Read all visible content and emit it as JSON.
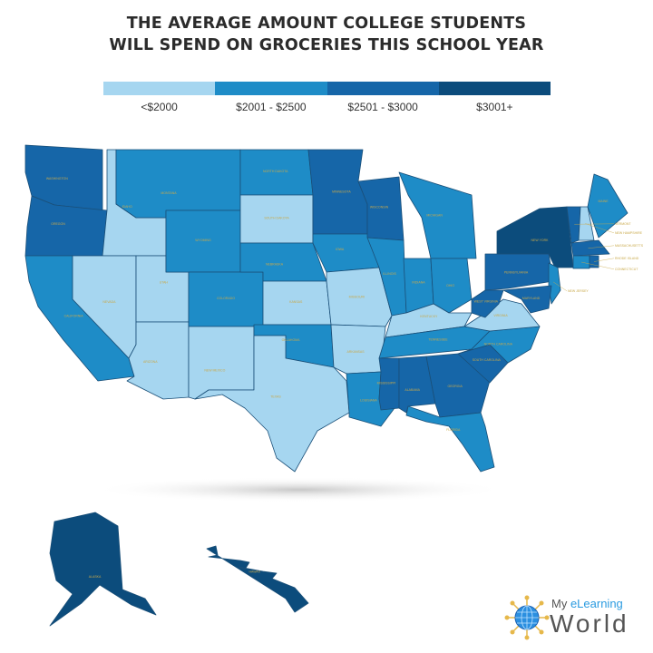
{
  "title_line1": "THE AVERAGE AMOUNT COLLEGE STUDENTS",
  "title_line2": "WILL SPEND ON GROCERIES THIS SCHOOL YEAR",
  "legend": [
    {
      "label": "<$2000",
      "color": "#a6d6f0"
    },
    {
      "label": "$2001 - $2500",
      "color": "#1e8cc7"
    },
    {
      "label": "$2501 - $3000",
      "color": "#1666a8"
    },
    {
      "label": "$3001+",
      "color": "#0c4c7c"
    }
  ],
  "label_color": "#c9a94a",
  "states": [
    {
      "name": "WASHINGTON",
      "bin": 2
    },
    {
      "name": "OREGON",
      "bin": 2
    },
    {
      "name": "CALIFORNIA",
      "bin": 1
    },
    {
      "name": "IDAHO",
      "bin": 0
    },
    {
      "name": "NEVADA",
      "bin": 0
    },
    {
      "name": "UTAH",
      "bin": 0
    },
    {
      "name": "ARIZONA",
      "bin": 0
    },
    {
      "name": "MONTANA",
      "bin": 1
    },
    {
      "name": "WYOMING",
      "bin": 1
    },
    {
      "name": "COLORADO",
      "bin": 1
    },
    {
      "name": "NEW MEXICO",
      "bin": 0
    },
    {
      "name": "NORTH DAKOTA",
      "bin": 1
    },
    {
      "name": "SOUTH DAKOTA",
      "bin": 0
    },
    {
      "name": "NEBRASKA",
      "bin": 1
    },
    {
      "name": "KANSAS",
      "bin": 0
    },
    {
      "name": "OKLAHOMA",
      "bin": 1
    },
    {
      "name": "TEXAS",
      "bin": 0
    },
    {
      "name": "MINNESOTA",
      "bin": 2
    },
    {
      "name": "IOWA",
      "bin": 1
    },
    {
      "name": "MISSOURI",
      "bin": 0
    },
    {
      "name": "ARKANSAS",
      "bin": 0
    },
    {
      "name": "LOUISIANA",
      "bin": 1
    },
    {
      "name": "WISCONSIN",
      "bin": 2
    },
    {
      "name": "ILLINOIS",
      "bin": 1
    },
    {
      "name": "MICHIGAN",
      "bin": 1
    },
    {
      "name": "INDIANA",
      "bin": 1
    },
    {
      "name": "OHIO",
      "bin": 1
    },
    {
      "name": "KENTUCKY",
      "bin": 0
    },
    {
      "name": "TENNESSEE",
      "bin": 1
    },
    {
      "name": "MISSISSIPPI",
      "bin": 2
    },
    {
      "name": "ALABAMA",
      "bin": 2
    },
    {
      "name": "GEORGIA",
      "bin": 2
    },
    {
      "name": "FLORIDA",
      "bin": 1
    },
    {
      "name": "SOUTH CAROLINA",
      "bin": 2
    },
    {
      "name": "NORTH CAROLINA",
      "bin": 1
    },
    {
      "name": "VIRGINIA",
      "bin": 0
    },
    {
      "name": "WEST VIRGINIA",
      "bin": 2
    },
    {
      "name": "PENNSYLVANIA",
      "bin": 2
    },
    {
      "name": "NEW YORK",
      "bin": 3
    },
    {
      "name": "NEW JERSEY",
      "bin": 1
    },
    {
      "name": "MARYLAND",
      "bin": 2
    },
    {
      "name": "VERMONT",
      "bin": 2
    },
    {
      "name": "NEW HAMPSHIRE",
      "bin": 0
    },
    {
      "name": "MAINE",
      "bin": 1
    },
    {
      "name": "MASSACHUSETTS",
      "bin": 2
    },
    {
      "name": "CONNECTICUT",
      "bin": 1
    },
    {
      "name": "RHODE ISLAND",
      "bin": 2
    },
    {
      "name": "ALASKA",
      "bin": 3
    },
    {
      "name": "HAWAII",
      "bin": 3
    }
  ],
  "logo": {
    "my": "My ",
    "elearning": "eLearning",
    "world": "World"
  }
}
